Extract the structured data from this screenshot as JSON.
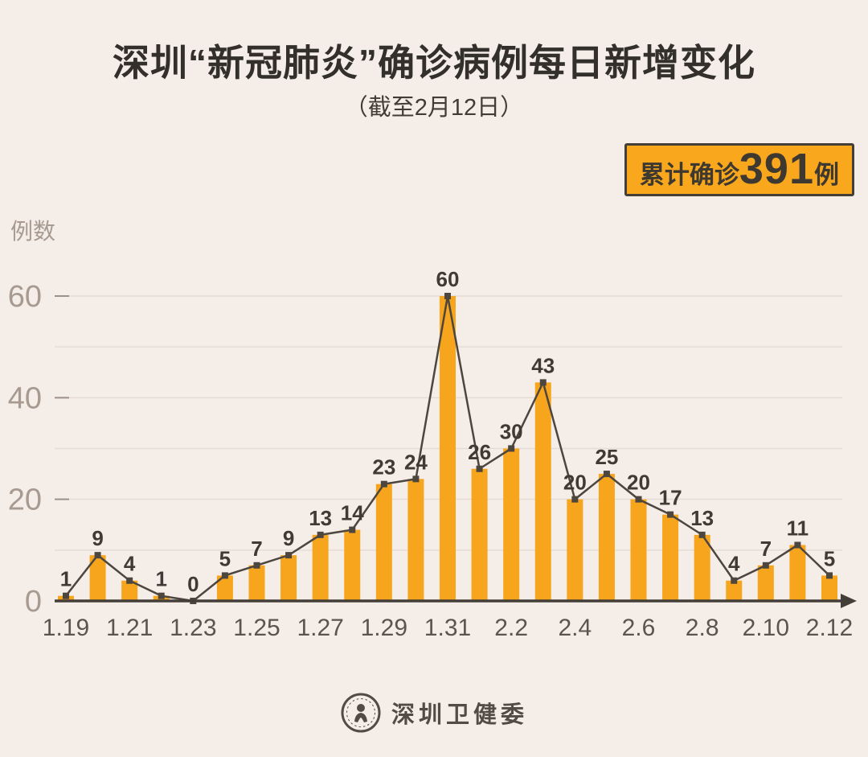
{
  "header": {
    "title": "深圳“新冠肺炎”确诊病例每日新增变化",
    "subtitle": "（截至2月12日）"
  },
  "badge": {
    "prefix": "累计确诊",
    "value": "391",
    "suffix": "例",
    "bg_color": "#f9a71c",
    "border_color": "#443e38"
  },
  "footer": {
    "brand": "深圳卫健委"
  },
  "chart_data": {
    "type": "bar",
    "overlay": "line",
    "title": "深圳“新冠肺炎”确诊病例每日新增变化",
    "subtitle": "（截至2月12日）",
    "ylabel": "例数",
    "xlabel": "",
    "categories": [
      "1.19",
      "1.20",
      "1.21",
      "1.22",
      "1.23",
      "1.24",
      "1.25",
      "1.26",
      "1.27",
      "1.28",
      "1.29",
      "1.30",
      "1.31",
      "2.1",
      "2.2",
      "2.3",
      "2.4",
      "2.5",
      "2.6",
      "2.7",
      "2.8",
      "2.9",
      "2.10",
      "2.11",
      "2.12"
    ],
    "values": [
      1,
      9,
      4,
      1,
      0,
      5,
      7,
      9,
      13,
      14,
      23,
      24,
      60,
      26,
      30,
      43,
      20,
      25,
      20,
      17,
      13,
      4,
      7,
      11,
      5
    ],
    "cumulative_total": 391,
    "xtick_labels": [
      "1.19",
      "1.21",
      "1.23",
      "1.25",
      "1.27",
      "1.29",
      "1.31",
      "2.2",
      "2.4",
      "2.6",
      "2.8",
      "2.10",
      "2.12"
    ],
    "xtick_every": 2,
    "yticks": [
      0,
      20,
      40,
      60
    ],
    "ylim": [
      0,
      60
    ],
    "grid_step": 10,
    "grid_on": true,
    "legend": "none",
    "bar_color": "#f6a51d",
    "line_color": "#4d463f",
    "value_label_color": "#3f3a34",
    "axis_color": "#443e38",
    "grid_color": "#e6dcd6",
    "ytick_label_color": "#a79a91",
    "xtick_label_color": "#5c554e",
    "background_color": "#f5ede8"
  }
}
